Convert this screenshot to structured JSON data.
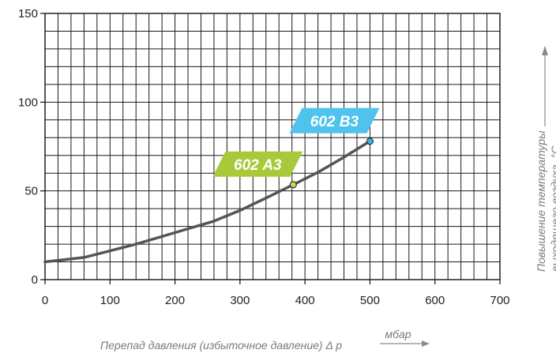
{
  "chart_data": {
    "type": "line",
    "xlabel": "Перепад давления (избыточное давление) Δ p",
    "xunit": "мбар",
    "ylabel_line1": "Повышение температуры",
    "ylabel_line2": "выходящего воздуха, °C",
    "xlim": [
      0,
      700
    ],
    "ylim": [
      0,
      150
    ],
    "x_ticks": [
      0,
      100,
      200,
      300,
      400,
      500,
      600,
      700
    ],
    "y_ticks": [
      0,
      50,
      100,
      150
    ],
    "x_minor_step": 20,
    "y_minor_step": 10,
    "grid": true,
    "series": [
      {
        "values": [
          [
            0,
            10
          ],
          [
            60,
            12.5
          ],
          [
            140,
            20
          ],
          [
            200,
            26.5
          ],
          [
            260,
            33
          ],
          [
            300,
            39
          ],
          [
            340,
            46
          ],
          [
            382,
            53.5
          ],
          [
            420,
            60.5
          ],
          [
            460,
            69
          ],
          [
            500,
            78
          ]
        ]
      }
    ],
    "markers": [
      {
        "label": "602 A3",
        "x": 382,
        "y": 53.5,
        "color": "#a9c93a",
        "dot": "#c8d84a"
      },
      {
        "label": "602 B3",
        "x": 500,
        "y": 78,
        "color": "#4fc3ec",
        "dot": "#3ab4e2"
      }
    ],
    "line_color": "#555555"
  }
}
